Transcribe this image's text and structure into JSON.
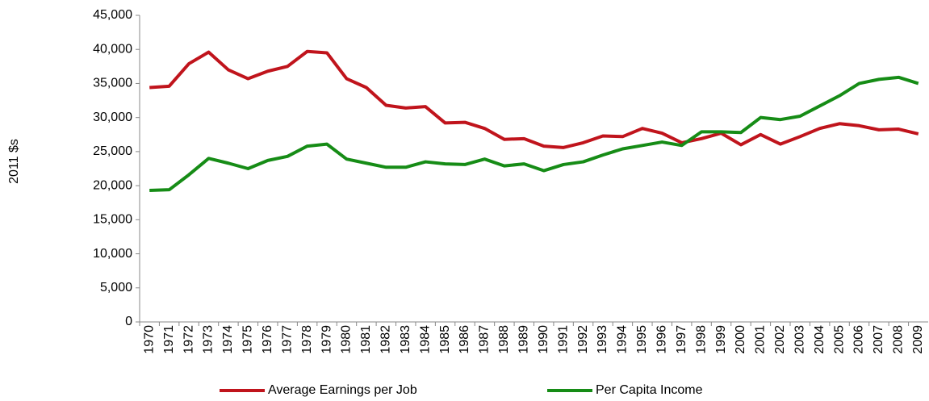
{
  "chart_data": {
    "type": "line",
    "y_label": "2011 $s",
    "categories": [
      "1970",
      "1971",
      "1972",
      "1973",
      "1974",
      "1975",
      "1976",
      "1977",
      "1978",
      "1979",
      "1980",
      "1981",
      "1982",
      "1983",
      "1984",
      "1985",
      "1986",
      "1987",
      "1988",
      "1989",
      "1990",
      "1991",
      "1992",
      "1993",
      "1994",
      "1995",
      "1996",
      "1997",
      "1998",
      "1999",
      "2000",
      "2001",
      "2002",
      "2003",
      "2004",
      "2005",
      "2006",
      "2007",
      "2008",
      "2009"
    ],
    "series": [
      {
        "name": "Average Earnings per Job",
        "color": "#c0141c",
        "values": [
          34400,
          34600,
          37900,
          39600,
          37000,
          35700,
          36800,
          37500,
          39700,
          39500,
          35700,
          34400,
          31800,
          31400,
          31600,
          29200,
          29300,
          28400,
          26800,
          26900,
          25800,
          25600,
          26300,
          27300,
          27200,
          28400,
          27700,
          26300,
          26900,
          27700,
          26000,
          27500,
          26100,
          27200,
          28400,
          29100,
          28800,
          28200,
          28300,
          27600
        ]
      },
      {
        "name": "Per Capita Income",
        "color": "#168c16",
        "values": [
          19300,
          19400,
          21600,
          24000,
          23300,
          22500,
          23700,
          24300,
          25800,
          26100,
          23900,
          23300,
          22700,
          22700,
          23500,
          23200,
          23100,
          23900,
          22900,
          23200,
          22200,
          23100,
          23500,
          24500,
          25400,
          25900,
          26400,
          25900,
          27900,
          27900,
          27800,
          30000,
          29700,
          30200,
          31700,
          33200,
          35000,
          35600,
          35900,
          35000
        ]
      }
    ],
    "ylim": [
      0,
      45000
    ],
    "yticks": [
      0,
      {
        "value": 5000,
        "label": "5,000"
      },
      {
        "value": 10000,
        "label": "10,000"
      },
      {
        "value": 15000,
        "label": "15,000"
      },
      {
        "value": 20000,
        "label": "20,000"
      },
      {
        "value": 25000,
        "label": "25,000"
      },
      {
        "value": 30000,
        "label": "30,000"
      },
      {
        "value": 35000,
        "label": "35,000"
      },
      {
        "value": 40000,
        "label": "40,000"
      },
      {
        "value": 45000,
        "label": "45,000"
      }
    ],
    "grid": false,
    "legend": "bottom"
  }
}
